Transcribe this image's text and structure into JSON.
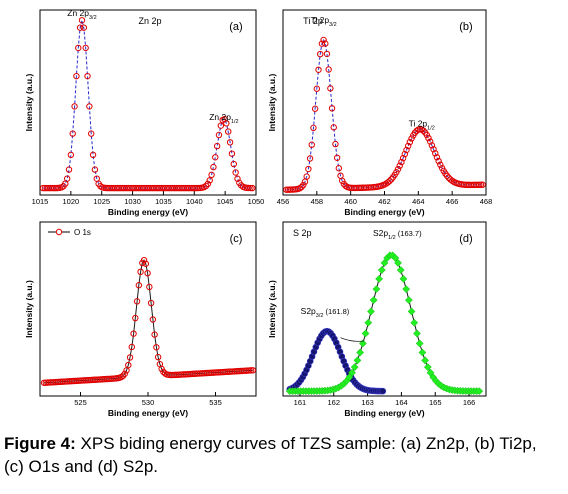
{
  "caption": {
    "label": "Figure 4:",
    "text": "XPS biding energy curves of TZS sample: (a) Zn2p, (b) Ti2p, (c) O1s and (d) S2p."
  },
  "colors": {
    "red": "#e00000",
    "blue": "#1010c8",
    "navy": "#151570",
    "green": "#22ee22",
    "axis": "#000000"
  },
  "chart_data": [
    {
      "type": "scatter",
      "panel_label": "(a)",
      "title": "Zn 2p",
      "xlabel": "Binding energy (eV)",
      "ylabel": "Intensity (a.u.)",
      "xlim": [
        1015,
        1050
      ],
      "xticks": [
        1015,
        1020,
        1025,
        1030,
        1035,
        1040,
        1045,
        1050
      ],
      "ylim": [
        0,
        100
      ],
      "annotations": [
        {
          "main": "Zn 2p",
          "sub": "3/2",
          "x": 1021.8,
          "y": 100
        },
        {
          "main": "Zn 2p",
          "sub": "1/2",
          "x": 1044.8,
          "y": 40
        }
      ],
      "series": [
        {
          "marker": "open-circle",
          "color": "#e00000",
          "line_color": "#1010c8",
          "peaks": [
            {
              "center": 1021.8,
              "height": 97,
              "width": 1.0
            },
            {
              "center": 1044.8,
              "height": 40,
              "width": 1.1
            }
          ],
          "background": {
            "start": 4,
            "end": 4
          },
          "x_from": 1015.5,
          "x_to": 1049.5,
          "step": 0.3
        }
      ]
    },
    {
      "type": "scatter",
      "panel_label": "(b)",
      "title": "Ti 2p",
      "xlabel": "Binding energy (eV)",
      "ylabel": "Intensity (a.u.)",
      "xlim": [
        456,
        468
      ],
      "xticks": [
        456,
        458,
        460,
        462,
        464,
        466,
        468
      ],
      "ylim": [
        0,
        100
      ],
      "annotations": [
        {
          "main": "Ti 2p",
          "sub": "3/2",
          "x": 458.4,
          "y": 96
        },
        {
          "main": "Ti 2p",
          "sub": "1/2",
          "x": 464.2,
          "y": 36
        }
      ],
      "series": [
        {
          "marker": "open-circle",
          "color": "#e00000",
          "line_color": "#1010c8",
          "peaks": [
            {
              "center": 458.4,
              "height": 86,
              "width": 0.45
            },
            {
              "center": 464.1,
              "height": 33,
              "width": 0.85
            }
          ],
          "background": {
            "start": 3,
            "end": 6
          },
          "x_from": 456.2,
          "x_to": 467.8,
          "step": 0.1
        }
      ]
    },
    {
      "type": "scatter",
      "panel_label": "(c)",
      "title": "",
      "xlabel": "Binding energy (eV)",
      "ylabel": "Intensity (a.u.)",
      "xlim": [
        522,
        538
      ],
      "xticks": [
        525,
        530,
        535
      ],
      "ylim": [
        0,
        100
      ],
      "legend": {
        "entries": [
          "O 1s"
        ],
        "placement": "top-left"
      },
      "annotations": [],
      "series": [
        {
          "name": "O 1s",
          "marker": "open-circle",
          "color": "#e00000",
          "line_color": "#000000",
          "peaks": [
            {
              "center": 529.7,
              "height": 72,
              "width": 0.55
            }
          ],
          "background": {
            "start": 8,
            "end": 16
          },
          "x_from": 522.3,
          "x_to": 537.8,
          "step": 0.13
        }
      ]
    },
    {
      "type": "scatter",
      "panel_label": "(d)",
      "title": "S 2p",
      "xlabel": "Binding energy (eV)",
      "ylabel": "Intensity (a.u.)",
      "xlim": [
        160.5,
        166.5
      ],
      "xticks": [
        161,
        162,
        163,
        164,
        165,
        166
      ],
      "ylim": [
        0,
        100
      ],
      "annotations": [
        {
          "main": "S2p",
          "sub": "3/2",
          "value": "(161.8)",
          "x": 161.8,
          "y": 42
        },
        {
          "main": "S2p",
          "sub": "1/2",
          "value": "(163.7)",
          "x": 163.7,
          "y": 90
        }
      ],
      "series": [
        {
          "marker": "filled-circle",
          "color": "#151570",
          "line_color": "#000000",
          "peaks": [
            {
              "center": 161.8,
              "height": 37,
              "width": 0.42
            }
          ],
          "background": {
            "start": 3,
            "end": 3
          },
          "x_from": 160.7,
          "x_to": 163.5,
          "step": 0.055
        },
        {
          "marker": "filled-diamond",
          "color": "#22ee22",
          "line_color": "#000000",
          "peaks": [
            {
              "center": 163.7,
              "height": 84,
              "width": 0.58
            }
          ],
          "background": {
            "start": 3,
            "end": 3
          },
          "x_from": 160.7,
          "x_to": 166.3,
          "step": 0.08
        }
      ]
    }
  ]
}
